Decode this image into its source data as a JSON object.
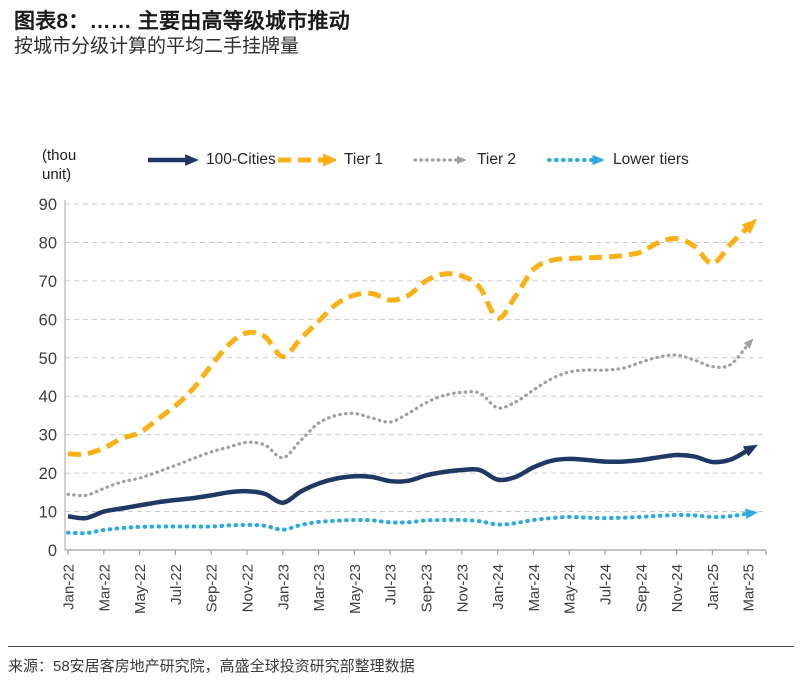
{
  "header": {
    "title": "图表8：…… 主要由高等级城市推动",
    "subtitle": "按城市分级计算的平均二手挂牌量"
  },
  "footer": {
    "source": "来源：58安居客房地产研究院，高盛全球投资研究部整理数据"
  },
  "chart_data": {
    "type": "line",
    "unit_label": "(thou unit)",
    "ylim": [
      0,
      90
    ],
    "y_ticks": [
      0,
      10,
      20,
      30,
      40,
      50,
      60,
      70,
      80,
      90
    ],
    "grid": "horizontal dashed gridlines",
    "legend_position": "top",
    "x_tick_labels": [
      "Jan-22",
      "Mar-22",
      "May-22",
      "Jul-22",
      "Sep-22",
      "Nov-22",
      "Jan-23",
      "Mar-23",
      "May-23",
      "Jul-23",
      "Sep-23",
      "Nov-23",
      "Jan-24",
      "Mar-24",
      "May-24",
      "Jul-24",
      "Sep-24",
      "Nov-24",
      "Jan-25",
      "Mar-25"
    ],
    "x": [
      "Jan-22",
      "Feb-22",
      "Mar-22",
      "Apr-22",
      "May-22",
      "Jun-22",
      "Jul-22",
      "Aug-22",
      "Sep-22",
      "Oct-22",
      "Nov-22",
      "Dec-22",
      "Jan-23",
      "Feb-23",
      "Mar-23",
      "Apr-23",
      "May-23",
      "Jun-23",
      "Jul-23",
      "Aug-23",
      "Sep-23",
      "Oct-23",
      "Nov-23",
      "Dec-23",
      "Jan-24",
      "Feb-24",
      "Mar-24",
      "Apr-24",
      "May-24",
      "Jun-24",
      "Jul-24",
      "Aug-24",
      "Sep-24",
      "Oct-24",
      "Nov-24",
      "Dec-24",
      "Jan-25",
      "Feb-25",
      "Mar-25"
    ],
    "series": [
      {
        "name": "100-Cities",
        "color": "#1F3864",
        "style": "solid",
        "width": 4.5,
        "values": [
          8.8,
          8.3,
          10.0,
          10.8,
          11.6,
          12.4,
          13.0,
          13.5,
          14.2,
          15.0,
          15.3,
          14.6,
          12.3,
          15.2,
          17.3,
          18.6,
          19.2,
          19.0,
          17.9,
          18.0,
          19.4,
          20.3,
          20.8,
          20.8,
          18.3,
          19.0,
          21.5,
          23.2,
          23.7,
          23.4,
          23.0,
          23.0,
          23.4,
          24.1,
          24.7,
          24.3,
          22.9,
          23.5,
          26.0
        ]
      },
      {
        "name": "Tier 1",
        "color": "#FBB116",
        "style": "dashed",
        "width": 5,
        "values": [
          25.0,
          25.0,
          26.5,
          29.0,
          30.5,
          34.0,
          37.5,
          42.0,
          48.0,
          53.5,
          56.5,
          55.5,
          50.3,
          55.0,
          59.5,
          64.0,
          66.3,
          66.7,
          65.0,
          66.2,
          70.0,
          71.8,
          71.3,
          68.3,
          60.3,
          66.0,
          73.0,
          75.3,
          75.8,
          76.0,
          76.2,
          76.6,
          77.5,
          80.0,
          81.0,
          79.0,
          74.5,
          79.5,
          84.0
        ]
      },
      {
        "name": "Tier 2",
        "color": "#A0A0A0",
        "style": "dotted",
        "width": 3.2,
        "values": [
          14.5,
          14.2,
          16.0,
          17.7,
          18.7,
          20.3,
          22.0,
          23.8,
          25.5,
          26.8,
          28.0,
          27.3,
          24.0,
          28.5,
          33.0,
          35.0,
          35.5,
          34.3,
          33.3,
          35.5,
          38.3,
          40.2,
          41.0,
          40.8,
          37.0,
          38.5,
          41.6,
          44.5,
          46.3,
          46.8,
          46.8,
          47.3,
          48.8,
          50.2,
          50.7,
          49.4,
          47.7,
          48.2,
          53.5
        ]
      },
      {
        "name": "Lower tiers",
        "color": "#2BA9E0",
        "style": "dotted",
        "width": 4,
        "values": [
          4.5,
          4.4,
          5.2,
          5.7,
          6.0,
          6.1,
          6.1,
          6.1,
          6.1,
          6.4,
          6.5,
          6.3,
          5.3,
          6.5,
          7.3,
          7.6,
          7.8,
          7.7,
          7.2,
          7.2,
          7.7,
          7.8,
          7.8,
          7.5,
          6.6,
          7.0,
          7.8,
          8.3,
          8.6,
          8.4,
          8.3,
          8.4,
          8.6,
          8.9,
          9.1,
          9.0,
          8.6,
          8.8,
          9.5
        ]
      }
    ]
  }
}
